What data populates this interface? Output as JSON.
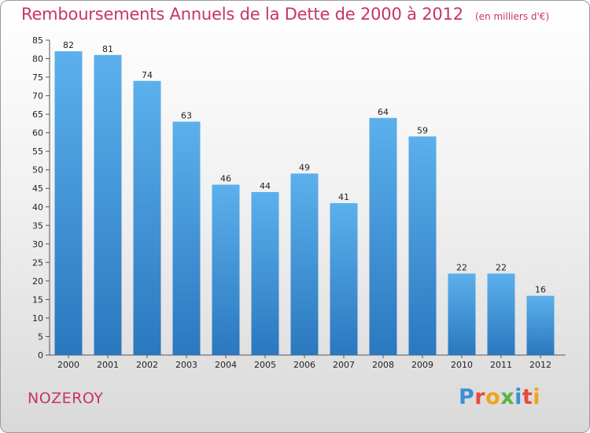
{
  "title": "Remboursements Annuels de la Dette de 2000 à 2012",
  "subtitle": "(en milliers d'€)",
  "commune": "NOZEROY",
  "logo": {
    "letters": [
      "P",
      "r",
      "o",
      "x",
      "i",
      "t",
      "i"
    ],
    "colors": [
      "#3c8fd6",
      "#e64a3c",
      "#f2a21b",
      "#5cb33f",
      "#3c8fd6",
      "#e64a3c",
      "#f2a21b"
    ]
  },
  "colors": {
    "bar": "#4aa0e0",
    "bar_dark": "#2f7fc4",
    "title": "#c8336b"
  },
  "chart_data": {
    "type": "bar",
    "title": "Remboursements Annuels de la Dette de 2000 à 2012",
    "subtitle": "(en milliers d'€)",
    "categories": [
      "2000",
      "2001",
      "2002",
      "2003",
      "2004",
      "2005",
      "2006",
      "2007",
      "2008",
      "2009",
      "2010",
      "2011",
      "2012"
    ],
    "values": [
      82,
      81,
      74,
      63,
      46,
      44,
      49,
      41,
      64,
      59,
      22,
      22,
      16
    ],
    "ylim": [
      0,
      85
    ],
    "yticks": [
      0,
      5,
      10,
      15,
      20,
      25,
      30,
      35,
      40,
      45,
      50,
      55,
      60,
      65,
      70,
      75,
      80,
      85
    ],
    "grid": false,
    "data_labels": true
  }
}
